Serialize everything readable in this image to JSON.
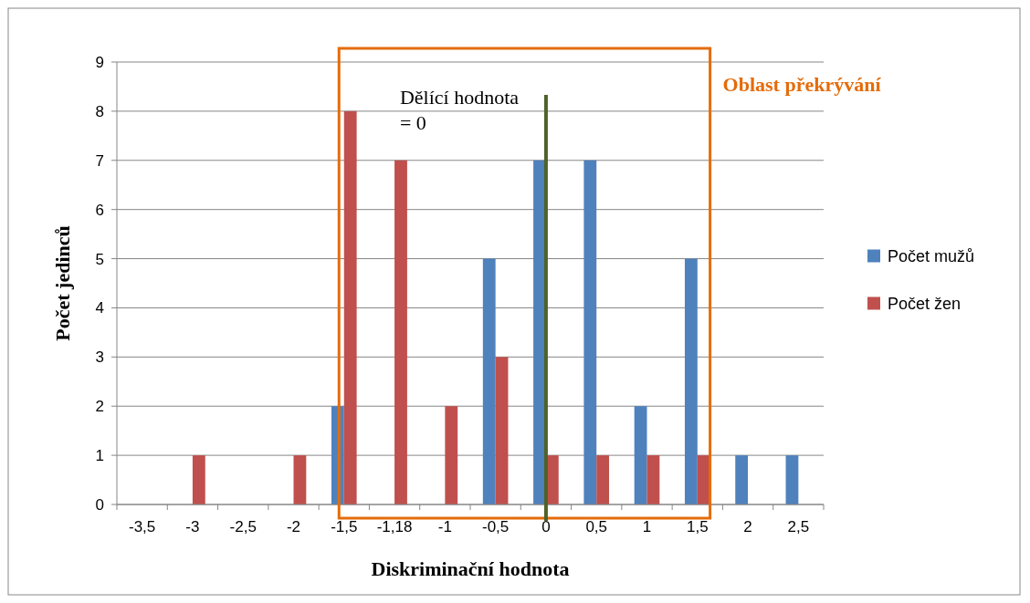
{
  "chart_data": {
    "type": "bar",
    "xlabel": "Diskriminační hodnota",
    "ylabel": "Počet jedinců",
    "categories": [
      "-3,5",
      "-3",
      "-2,5",
      "-2",
      "-1,5",
      "-1,18",
      "-1",
      "-0,5",
      "0",
      "0,5",
      "1",
      "1,5",
      "2",
      "2,5"
    ],
    "series": [
      {
        "name": "Počet mužů",
        "color": "#4f81bd",
        "values": [
          0,
          0,
          0,
          0,
          2,
          0,
          0,
          5,
          7,
          7,
          2,
          5,
          1,
          1
        ]
      },
      {
        "name": "Počet žen",
        "color": "#c0504d",
        "values": [
          0,
          1,
          0,
          1,
          8,
          7,
          2,
          3,
          1,
          1,
          1,
          1,
          0,
          0
        ]
      }
    ],
    "ylim": [
      0,
      9
    ],
    "yticks": [
      0,
      1,
      2,
      3,
      4,
      5,
      6,
      7,
      8,
      9
    ],
    "grid": "y",
    "legend": "right",
    "ref_lines": [
      {
        "axis": "x",
        "value": "0",
        "label": "Dělící hodnota = 0",
        "color": "#4f6228"
      }
    ],
    "annotations": [
      "Oblast překrývání"
    ]
  }
}
